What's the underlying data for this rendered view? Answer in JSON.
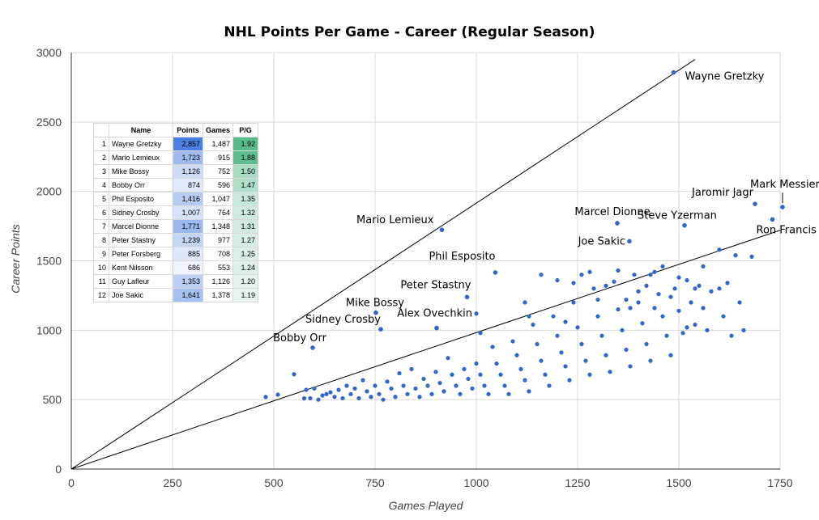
{
  "chart_data": {
    "type": "scatter",
    "title": "NHL Points Per Game  -   Career (Regular Season)",
    "xlabel": "Games Played",
    "ylabel": "Career Points",
    "xlim": [
      0,
      1750
    ],
    "ylim": [
      0,
      3000
    ],
    "xticks": [
      "0",
      "250",
      "500",
      "750",
      "1000",
      "1250",
      "1500",
      "1750"
    ],
    "yticks": [
      "0",
      "500",
      "1000",
      "1500",
      "2000",
      "2500",
      "3000"
    ],
    "grid": true,
    "reference_lines": [
      {
        "x": [
          0,
          1540
        ],
        "y": [
          0,
          2950
        ]
      },
      {
        "x": [
          0,
          1750
        ],
        "y": [
          0,
          1720
        ]
      }
    ],
    "labeled_points": [
      {
        "name": "Wayne Gretzky",
        "x": 1487,
        "y": 2857
      },
      {
        "name": "Mario Lemieux",
        "x": 915,
        "y": 1723
      },
      {
        "name": "Mike Bossy",
        "x": 752,
        "y": 1126
      },
      {
        "name": "Bobby Orr",
        "x": 596,
        "y": 874
      },
      {
        "name": "Phil Esposito",
        "x": 1047,
        "y": 1416
      },
      {
        "name": "Sidney Crosby",
        "x": 764,
        "y": 1007
      },
      {
        "name": "Marcel Dionne",
        "x": 1348,
        "y": 1771
      },
      {
        "name": "Peter Stastny",
        "x": 977,
        "y": 1239
      },
      {
        "name": "Alex Ovechkin",
        "x": 902,
        "y": 1016
      },
      {
        "name": "Joe Sakic",
        "x": 1378,
        "y": 1641
      },
      {
        "name": "Steve Yzerman",
        "x": 1514,
        "y": 1755
      },
      {
        "name": "Jaromir Jagr",
        "x": 1688,
        "y": 1910
      },
      {
        "name": "Mark Messier",
        "x": 1756,
        "y": 1887
      },
      {
        "name": "Ron Francis",
        "x": 1731,
        "y": 1798
      }
    ],
    "points": [
      [
        480,
        519
      ],
      [
        510,
        536
      ],
      [
        550,
        683
      ],
      [
        575,
        509
      ],
      [
        580,
        571
      ],
      [
        590,
        510
      ],
      [
        600,
        580
      ],
      [
        610,
        500
      ],
      [
        620,
        530
      ],
      [
        630,
        540
      ],
      [
        640,
        553
      ],
      [
        650,
        520
      ],
      [
        660,
        570
      ],
      [
        670,
        510
      ],
      [
        680,
        600
      ],
      [
        690,
        540
      ],
      [
        700,
        580
      ],
      [
        710,
        510
      ],
      [
        720,
        640
      ],
      [
        730,
        560
      ],
      [
        740,
        520
      ],
      [
        750,
        600
      ],
      [
        760,
        540
      ],
      [
        770,
        500
      ],
      [
        780,
        630
      ],
      [
        790,
        580
      ],
      [
        800,
        520
      ],
      [
        810,
        690
      ],
      [
        820,
        600
      ],
      [
        830,
        540
      ],
      [
        840,
        720
      ],
      [
        850,
        580
      ],
      [
        860,
        520
      ],
      [
        870,
        650
      ],
      [
        880,
        600
      ],
      [
        890,
        540
      ],
      [
        900,
        700
      ],
      [
        910,
        620
      ],
      [
        920,
        560
      ],
      [
        930,
        800
      ],
      [
        940,
        680
      ],
      [
        950,
        600
      ],
      [
        960,
        540
      ],
      [
        970,
        720
      ],
      [
        980,
        650
      ],
      [
        990,
        580
      ],
      [
        1000,
        760
      ],
      [
        1010,
        680
      ],
      [
        1020,
        600
      ],
      [
        1030,
        540
      ],
      [
        1040,
        880
      ],
      [
        1050,
        760
      ],
      [
        1060,
        680
      ],
      [
        1070,
        600
      ],
      [
        1080,
        540
      ],
      [
        1090,
        920
      ],
      [
        1100,
        820
      ],
      [
        1110,
        720
      ],
      [
        1120,
        640
      ],
      [
        1130,
        560
      ],
      [
        1140,
        1040
      ],
      [
        1150,
        900
      ],
      [
        1160,
        780
      ],
      [
        1170,
        680
      ],
      [
        1180,
        600
      ],
      [
        1190,
        1100
      ],
      [
        1200,
        960
      ],
      [
        1210,
        840
      ],
      [
        1220,
        740
      ],
      [
        1230,
        640
      ],
      [
        1240,
        1200
      ],
      [
        1250,
        1020
      ],
      [
        1260,
        900
      ],
      [
        1270,
        780
      ],
      [
        1280,
        680
      ],
      [
        1290,
        1300
      ],
      [
        1300,
        1100
      ],
      [
        1310,
        960
      ],
      [
        1320,
        820
      ],
      [
        1330,
        700
      ],
      [
        1340,
        1350
      ],
      [
        1350,
        1150
      ],
      [
        1360,
        1000
      ],
      [
        1370,
        860
      ],
      [
        1380,
        740
      ],
      [
        1390,
        1400
      ],
      [
        1400,
        1200
      ],
      [
        1410,
        1050
      ],
      [
        1420,
        900
      ],
      [
        1430,
        780
      ],
      [
        1440,
        1420
      ],
      [
        1450,
        1260
      ],
      [
        1460,
        1100
      ],
      [
        1470,
        960
      ],
      [
        1480,
        820
      ],
      [
        1490,
        1300
      ],
      [
        1500,
        1140
      ],
      [
        1510,
        980
      ],
      [
        1520,
        1360
      ],
      [
        1530,
        1200
      ],
      [
        1540,
        1040
      ],
      [
        1550,
        1320
      ],
      [
        1560,
        1160
      ],
      [
        1570,
        1000
      ],
      [
        1580,
        1280
      ],
      [
        1600,
        1580
      ],
      [
        1610,
        1100
      ],
      [
        1620,
        1340
      ],
      [
        1630,
        960
      ],
      [
        1640,
        1540
      ],
      [
        1650,
        1200
      ],
      [
        1660,
        1000
      ],
      [
        1000,
        1120
      ],
      [
        1010,
        980
      ],
      [
        1120,
        1200
      ],
      [
        1130,
        1100
      ],
      [
        1160,
        1400
      ],
      [
        1200,
        1360
      ],
      [
        1220,
        1060
      ],
      [
        1240,
        1340
      ],
      [
        1260,
        1400
      ],
      [
        1280,
        1420
      ],
      [
        1300,
        1220
      ],
      [
        1320,
        1320
      ],
      [
        1350,
        1430
      ],
      [
        1370,
        1220
      ],
      [
        1380,
        1160
      ],
      [
        1400,
        1280
      ],
      [
        1420,
        1320
      ],
      [
        1430,
        1400
      ],
      [
        1440,
        1160
      ],
      [
        1460,
        1460
      ],
      [
        1480,
        1240
      ],
      [
        1500,
        1380
      ],
      [
        1520,
        1020
      ],
      [
        1540,
        1300
      ],
      [
        1560,
        1460
      ],
      [
        1600,
        1300
      ],
      [
        1620,
        1340
      ],
      [
        1680,
        1530
      ]
    ]
  },
  "table": {
    "headers": [
      "Name",
      "Points",
      "Games",
      "P/G"
    ],
    "rows": [
      {
        "rank": "1",
        "name": "Wayne Gretzky",
        "points": "2,857",
        "games": "1,487",
        "ppg": "1.92"
      },
      {
        "rank": "2",
        "name": "Mario Lemieux",
        "points": "1,723",
        "games": "915",
        "ppg": "1.88"
      },
      {
        "rank": "3",
        "name": "Mike Bossy",
        "points": "1,126",
        "games": "752",
        "ppg": "1.50"
      },
      {
        "rank": "4",
        "name": "Bobby Orr",
        "points": "874",
        "games": "596",
        "ppg": "1.47"
      },
      {
        "rank": "5",
        "name": "Phil Esposito",
        "points": "1,416",
        "games": "1,047",
        "ppg": "1.35"
      },
      {
        "rank": "6",
        "name": "Sidney Crosby",
        "points": "1,007",
        "games": "764",
        "ppg": "1.32"
      },
      {
        "rank": "7",
        "name": "Marcel Dionne",
        "points": "1,771",
        "games": "1,348",
        "ppg": "1.31"
      },
      {
        "rank": "8",
        "name": "Peter Stastny",
        "points": "1,239",
        "games": "977",
        "ppg": "1.27"
      },
      {
        "rank": "9",
        "name": "Peter Forsberg",
        "points": "885",
        "games": "708",
        "ppg": "1.25"
      },
      {
        "rank": "10",
        "name": "Kent Nilsson",
        "points": "686",
        "games": "553",
        "ppg": "1.24"
      },
      {
        "rank": "11",
        "name": "Guy Lafleur",
        "points": "1,353",
        "games": "1,126",
        "ppg": "1.20"
      },
      {
        "rank": "12",
        "name": "Joe Sakic",
        "points": "1,641",
        "games": "1,378",
        "ppg": "1.19"
      }
    ]
  },
  "colors": {
    "point": "#3366cc",
    "grid": "#d9d9d9",
    "axis": "#333333",
    "points_scale_high": "#4a7ee0",
    "points_scale_low": "#eef3fc",
    "ppg_scale_high": "#57bb8a",
    "ppg_scale_low": "#e8f5ee"
  }
}
